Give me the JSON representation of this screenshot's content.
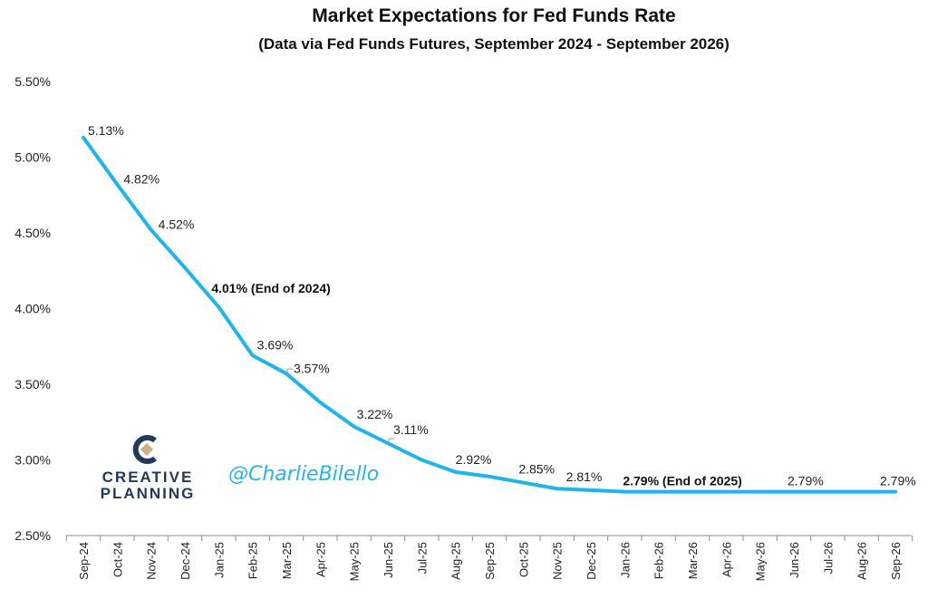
{
  "chart_data": {
    "type": "line",
    "title": "Market Expectations for Fed Funds Rate",
    "subtitle": "(Data via Fed Funds Futures, September 2024 - September 2026)",
    "xlabel": "",
    "ylabel": "",
    "categories": [
      "Sep-24",
      "Oct-24",
      "Nov-24",
      "Dec-24",
      "Jan-25",
      "Feb-25",
      "Mar-25",
      "Apr-25",
      "May-25",
      "Jun-25",
      "Jul-25",
      "Aug-25",
      "Sep-25",
      "Oct-25",
      "Nov-25",
      "Dec-25",
      "Jan-26",
      "Feb-26",
      "Mar-26",
      "Apr-26",
      "May-26",
      "Jun-26",
      "Jul-26",
      "Aug-26",
      "Sep-26"
    ],
    "series": [
      {
        "name": "",
        "color": "#1fb5ea",
        "values": [
          5.13,
          4.82,
          4.52,
          4.27,
          4.01,
          3.69,
          3.57,
          3.38,
          3.22,
          3.11,
          3.0,
          2.92,
          2.89,
          2.85,
          2.81,
          2.8,
          2.79,
          2.79,
          2.79,
          2.79,
          2.79,
          2.79,
          2.79,
          2.79,
          2.79
        ]
      }
    ],
    "ylim": [
      2.5,
      5.5
    ],
    "yticks": [
      "2.50%",
      "3.00%",
      "3.50%",
      "4.00%",
      "4.50%",
      "5.00%",
      "5.50%"
    ],
    "grid": false,
    "legend": "none",
    "annotations": [
      {
        "index": 0,
        "text": "5.13%",
        "bold": false
      },
      {
        "index": 1,
        "text": "4.82%",
        "bold": false
      },
      {
        "index": 2,
        "text": "4.52%",
        "bold": false
      },
      {
        "index": 4,
        "text": "4.01% (End of 2024)",
        "bold": true
      },
      {
        "index": 5,
        "text": "3.69%",
        "bold": false
      },
      {
        "index": 6,
        "text": "3.57%",
        "bold": false
      },
      {
        "index": 8,
        "text": "3.22%",
        "bold": false
      },
      {
        "index": 9,
        "text": "3.11%",
        "bold": false
      },
      {
        "index": 11,
        "text": "2.92%",
        "bold": false
      },
      {
        "index": 13,
        "text": "2.85%",
        "bold": false
      },
      {
        "index": 14,
        "text": "2.81%",
        "bold": false
      },
      {
        "index": 16,
        "text": "2.79% (End of 2025)",
        "bold": true
      },
      {
        "index": 21,
        "text": "2.79%",
        "bold": false
      },
      {
        "index": 24,
        "text": "2.79%",
        "bold": false
      }
    ]
  },
  "branding": {
    "logo_line1": "CREATIVE",
    "logo_line2": "PLANNING",
    "handle": "@CharlieBilello",
    "logo_color": "#1f3a5a",
    "logo_accent": "#c9b28a"
  }
}
